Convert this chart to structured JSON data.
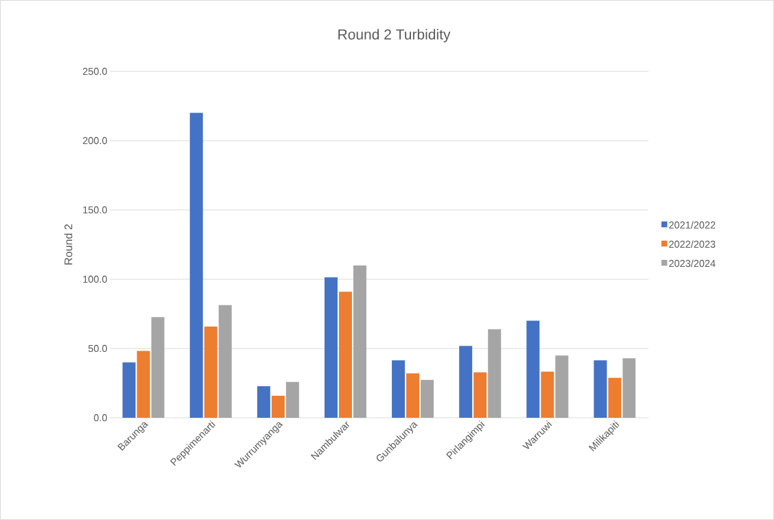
{
  "chart_data": {
    "type": "bar",
    "title": "Round 2 Turbidity",
    "ylabel": "Round 2",
    "categories": [
      "Barunga",
      "Peppimenarti",
      "Wurrumyanga",
      "Nambulwar",
      "Gunbalunya",
      "Pirlangimpi",
      "Warruwi",
      "Milikapiti"
    ],
    "series": [
      {
        "name": "2021/2022",
        "color": "#4472c4",
        "values": [
          40,
          220,
          22.8,
          101.3,
          41.4,
          51.8,
          70,
          41.4
        ]
      },
      {
        "name": "2022/2023",
        "color": "#ed7d31",
        "values": [
          48.3,
          65.8,
          15.9,
          90.9,
          32,
          32.8,
          33.3,
          28.8
        ]
      },
      {
        "name": "2023/2024",
        "color": "#a5a5a5",
        "values": [
          72.7,
          81.3,
          25.8,
          109.9,
          27.3,
          63.9,
          44.9,
          42.9
        ]
      }
    ],
    "ylim": [
      0,
      250
    ],
    "yticks": [
      {
        "value": 0,
        "label": "0.0"
      },
      {
        "value": 50,
        "label": "50.0"
      },
      {
        "value": 100,
        "label": "100.0"
      },
      {
        "value": 150,
        "label": "150.0"
      },
      {
        "value": 200,
        "label": "200.0"
      },
      {
        "value": 250,
        "label": "250.0"
      }
    ],
    "grid": "y",
    "legend": "right"
  }
}
